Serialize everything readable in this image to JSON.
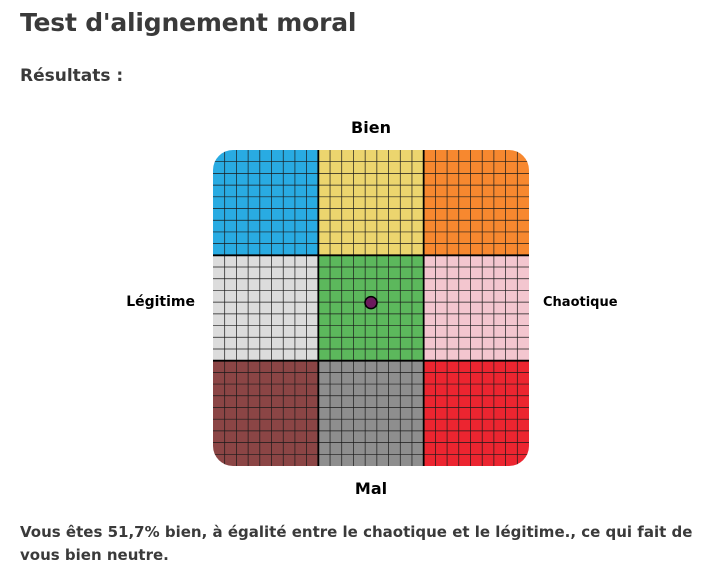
{
  "page": {
    "title": "Test d'alignement moral",
    "results_heading": "Résultats :",
    "result_text": "Vous êtes 51,7% bien, à égalité entre le chaotique et le légitime., ce qui fait de vous bien neutre."
  },
  "chart": {
    "axis_labels": {
      "top": "Bien",
      "bottom": "Mal",
      "left": "Légitime",
      "right": "Chaotique"
    },
    "cells": [
      {
        "name": "lawful-good",
        "color": "#29abe2"
      },
      {
        "name": "neutral-good",
        "color": "#ecd56e"
      },
      {
        "name": "chaotic-good",
        "color": "#f7882f"
      },
      {
        "name": "lawful-neutral",
        "color": "#dcdcdc"
      },
      {
        "name": "true-neutral",
        "color": "#5cb85c"
      },
      {
        "name": "chaotic-neutral",
        "color": "#f3c6cf"
      },
      {
        "name": "lawful-evil",
        "color": "#8b4545"
      },
      {
        "name": "neutral-evil",
        "color": "#8e8e8e"
      },
      {
        "name": "chaotic-evil",
        "color": "#ec2530"
      }
    ],
    "grid_subdivisions": 9,
    "grid_line_color": "#1a1a1a",
    "marker": {
      "good_percent": 51.7,
      "lawful_chaotic_position": 0.5,
      "color": "#6b1a5c"
    }
  }
}
